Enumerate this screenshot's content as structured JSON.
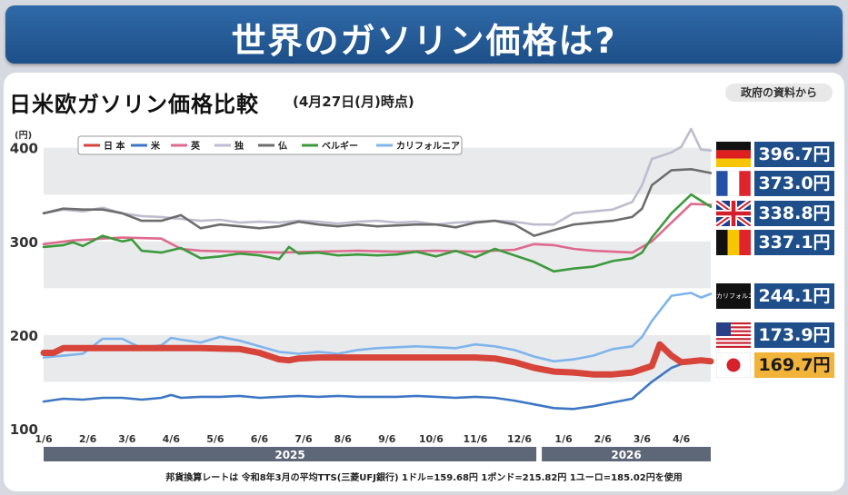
{
  "header": {
    "title": "世界のガソリン価格は?"
  },
  "subtitle": "日米欧ガソリン価格比較",
  "subtitle_date": "(4月27日(月)時点)",
  "source_badge": "政府の資料から",
  "footnote": "邦貨換算レートは 令和8年3月の平均TTS(三菱UFJ銀行)  1ドル=159.68円  1ポンド=215.82円  1ユーロ=185.02円を使用",
  "prices": [
    {
      "key": "germany",
      "value": "396.7円",
      "flag": "germany-flag-icon"
    },
    {
      "key": "france",
      "value": "373.0円",
      "flag": "france-flag-icon"
    },
    {
      "key": "uk",
      "value": "338.8円",
      "flag": "uk-flag-icon"
    },
    {
      "key": "belgium",
      "value": "337.1円",
      "flag": "belgium-flag-icon"
    },
    {
      "key": "california",
      "value": "244.1円",
      "label": "カリフォルニア"
    },
    {
      "key": "usa",
      "value": "173.9円",
      "flag": "usa-flag-icon"
    },
    {
      "key": "japan",
      "value": "169.7円",
      "flag": "japan-flag-icon"
    }
  ],
  "chart_data": {
    "type": "line",
    "title": "日米欧ガソリン価格比較",
    "ylabel": "(円)",
    "ylim": [
      100,
      420
    ],
    "yticks": [
      100,
      200,
      300,
      400
    ],
    "x_range": [
      0,
      68
    ],
    "x_tick_positions": [
      0,
      4.5,
      8.5,
      13,
      17.5,
      22,
      26.5,
      30.5,
      35,
      39.5,
      44,
      48.5,
      53,
      57,
      61,
      65
    ],
    "x_tick_labels": [
      "1/6",
      "2/6",
      "3/6",
      "4/6",
      "5/6",
      "6/6",
      "7/6",
      "8/6",
      "9/6",
      "10/6",
      "11/6",
      "12/6",
      "1/6",
      "2/6",
      "3/6",
      "4/6"
    ],
    "year_labels": [
      {
        "label": "2025",
        "from": 0,
        "to": 50.5
      },
      {
        "label": "2026",
        "from": 50.5,
        "to": 68
      }
    ],
    "grid": "horizontal-bands",
    "legend_position": "top-left",
    "colors": {
      "japan": "#d6443a",
      "usa": "#3d77c4",
      "uk": "#df6a8f",
      "germany": "#bdbdcf",
      "france": "#6d6d6d",
      "belgium": "#3c9a3c",
      "california": "#7fb4ec"
    },
    "series": [
      {
        "name": "日 本",
        "key": "japan",
        "points": [
          [
            0,
            181
          ],
          [
            1,
            181
          ],
          [
            2,
            186
          ],
          [
            4,
            186
          ],
          [
            8,
            186
          ],
          [
            12,
            186
          ],
          [
            16,
            186
          ],
          [
            20,
            185
          ],
          [
            22,
            181
          ],
          [
            24,
            174
          ],
          [
            25,
            173
          ],
          [
            26,
            175
          ],
          [
            28,
            176
          ],
          [
            32,
            176
          ],
          [
            36,
            176
          ],
          [
            40,
            176
          ],
          [
            44,
            176
          ],
          [
            46,
            175
          ],
          [
            48,
            171
          ],
          [
            50,
            165
          ],
          [
            52,
            161
          ],
          [
            54,
            160
          ],
          [
            56,
            158
          ],
          [
            58,
            158
          ],
          [
            60,
            160
          ],
          [
            62,
            167
          ],
          [
            62.8,
            190
          ],
          [
            64,
            178
          ],
          [
            65,
            171
          ],
          [
            66,
            172
          ],
          [
            67,
            173
          ],
          [
            68,
            172
          ]
        ]
      },
      {
        "name": "米",
        "key": "usa",
        "points": [
          [
            0,
            129
          ],
          [
            2,
            132
          ],
          [
            4,
            131
          ],
          [
            6,
            133
          ],
          [
            8,
            133
          ],
          [
            10,
            131
          ],
          [
            12,
            133
          ],
          [
            13,
            136
          ],
          [
            14,
            133
          ],
          [
            16,
            134
          ],
          [
            18,
            134
          ],
          [
            20,
            135
          ],
          [
            22,
            133
          ],
          [
            24,
            134
          ],
          [
            26,
            135
          ],
          [
            28,
            134
          ],
          [
            30,
            135
          ],
          [
            32,
            134
          ],
          [
            36,
            134
          ],
          [
            38,
            135
          ],
          [
            40,
            134
          ],
          [
            42,
            133
          ],
          [
            44,
            134
          ],
          [
            46,
            133
          ],
          [
            48,
            130
          ],
          [
            50,
            126
          ],
          [
            52,
            122
          ],
          [
            54,
            121
          ],
          [
            56,
            124
          ],
          [
            58,
            128
          ],
          [
            60,
            132
          ],
          [
            62,
            150
          ],
          [
            64,
            165
          ],
          [
            66,
            173
          ],
          [
            68,
            174
          ]
        ]
      },
      {
        "name": "英",
        "key": "uk",
        "points": [
          [
            0,
            297
          ],
          [
            3,
            301
          ],
          [
            6,
            303
          ],
          [
            8,
            304
          ],
          [
            12,
            303
          ],
          [
            14,
            292
          ],
          [
            16,
            290
          ],
          [
            20,
            289
          ],
          [
            24,
            288
          ],
          [
            28,
            289
          ],
          [
            32,
            290
          ],
          [
            36,
            289
          ],
          [
            40,
            290
          ],
          [
            44,
            289
          ],
          [
            48,
            291
          ],
          [
            50,
            297
          ],
          [
            52,
            296
          ],
          [
            54,
            292
          ],
          [
            56,
            290
          ],
          [
            58,
            289
          ],
          [
            60,
            288
          ],
          [
            62,
            300
          ],
          [
            64,
            320
          ],
          [
            66,
            340
          ],
          [
            68,
            339
          ]
        ]
      },
      {
        "name": "独",
        "key": "germany",
        "points": [
          [
            0,
            330
          ],
          [
            2,
            334
          ],
          [
            4,
            332
          ],
          [
            6,
            336
          ],
          [
            8,
            330
          ],
          [
            10,
            327
          ],
          [
            12,
            326
          ],
          [
            14,
            324
          ],
          [
            16,
            322
          ],
          [
            18,
            323
          ],
          [
            20,
            320
          ],
          [
            22,
            321
          ],
          [
            24,
            320
          ],
          [
            26,
            322
          ],
          [
            28,
            321
          ],
          [
            30,
            319
          ],
          [
            32,
            321
          ],
          [
            34,
            322
          ],
          [
            36,
            320
          ],
          [
            38,
            321
          ],
          [
            40,
            318
          ],
          [
            42,
            320
          ],
          [
            44,
            321
          ],
          [
            46,
            322
          ],
          [
            48,
            321
          ],
          [
            50,
            318
          ],
          [
            52,
            318
          ],
          [
            54,
            330
          ],
          [
            56,
            332
          ],
          [
            58,
            334
          ],
          [
            60,
            342
          ],
          [
            61,
            360
          ],
          [
            62,
            388
          ],
          [
            64,
            395
          ],
          [
            65,
            401
          ],
          [
            66,
            420
          ],
          [
            67,
            398
          ],
          [
            68,
            397
          ]
        ]
      },
      {
        "name": "仏",
        "key": "france",
        "points": [
          [
            0,
            330
          ],
          [
            2,
            335
          ],
          [
            4,
            334
          ],
          [
            6,
            334
          ],
          [
            8,
            330
          ],
          [
            10,
            322
          ],
          [
            12,
            322
          ],
          [
            14,
            328
          ],
          [
            16,
            314
          ],
          [
            18,
            318
          ],
          [
            20,
            316
          ],
          [
            22,
            314
          ],
          [
            24,
            316
          ],
          [
            26,
            321
          ],
          [
            28,
            318
          ],
          [
            30,
            316
          ],
          [
            32,
            318
          ],
          [
            34,
            316
          ],
          [
            36,
            317
          ],
          [
            38,
            318
          ],
          [
            40,
            318
          ],
          [
            42,
            315
          ],
          [
            44,
            320
          ],
          [
            46,
            322
          ],
          [
            48,
            318
          ],
          [
            50,
            306
          ],
          [
            52,
            312
          ],
          [
            54,
            318
          ],
          [
            56,
            320
          ],
          [
            58,
            322
          ],
          [
            60,
            326
          ],
          [
            61,
            335
          ],
          [
            62,
            360
          ],
          [
            64,
            376
          ],
          [
            66,
            377
          ],
          [
            68,
            373
          ]
        ]
      },
      {
        "name": "ベルギー",
        "key": "belgium",
        "points": [
          [
            0,
            294
          ],
          [
            2,
            296
          ],
          [
            3,
            299
          ],
          [
            4,
            295
          ],
          [
            6,
            306
          ],
          [
            8,
            300
          ],
          [
            9,
            302
          ],
          [
            10,
            290
          ],
          [
            12,
            288
          ],
          [
            14,
            293
          ],
          [
            16,
            282
          ],
          [
            18,
            284
          ],
          [
            20,
            287
          ],
          [
            22,
            285
          ],
          [
            24,
            281
          ],
          [
            25,
            294
          ],
          [
            26,
            287
          ],
          [
            28,
            288
          ],
          [
            30,
            285
          ],
          [
            32,
            286
          ],
          [
            34,
            285
          ],
          [
            36,
            286
          ],
          [
            38,
            289
          ],
          [
            40,
            284
          ],
          [
            42,
            290
          ],
          [
            44,
            283
          ],
          [
            46,
            292
          ],
          [
            48,
            285
          ],
          [
            50,
            278
          ],
          [
            52,
            268
          ],
          [
            54,
            271
          ],
          [
            56,
            273
          ],
          [
            58,
            279
          ],
          [
            60,
            282
          ],
          [
            61,
            288
          ],
          [
            62,
            304
          ],
          [
            64,
            330
          ],
          [
            66,
            350
          ],
          [
            68,
            337
          ]
        ]
      },
      {
        "name": "カリフォルニア",
        "key": "california",
        "points": [
          [
            0,
            176
          ],
          [
            2,
            178
          ],
          [
            4,
            180
          ],
          [
            6,
            196
          ],
          [
            8,
            196
          ],
          [
            10,
            186
          ],
          [
            12,
            189
          ],
          [
            13,
            197
          ],
          [
            14,
            195
          ],
          [
            16,
            192
          ],
          [
            18,
            198
          ],
          [
            20,
            194
          ],
          [
            22,
            188
          ],
          [
            24,
            182
          ],
          [
            26,
            180
          ],
          [
            28,
            182
          ],
          [
            30,
            180
          ],
          [
            32,
            184
          ],
          [
            34,
            186
          ],
          [
            36,
            187
          ],
          [
            38,
            188
          ],
          [
            40,
            187
          ],
          [
            42,
            186
          ],
          [
            44,
            190
          ],
          [
            46,
            188
          ],
          [
            48,
            184
          ],
          [
            50,
            177
          ],
          [
            52,
            172
          ],
          [
            54,
            174
          ],
          [
            56,
            178
          ],
          [
            58,
            185
          ],
          [
            60,
            188
          ],
          [
            61,
            198
          ],
          [
            62,
            215
          ],
          [
            64,
            242
          ],
          [
            66,
            245
          ],
          [
            67,
            240
          ],
          [
            68,
            244
          ]
        ]
      }
    ]
  }
}
